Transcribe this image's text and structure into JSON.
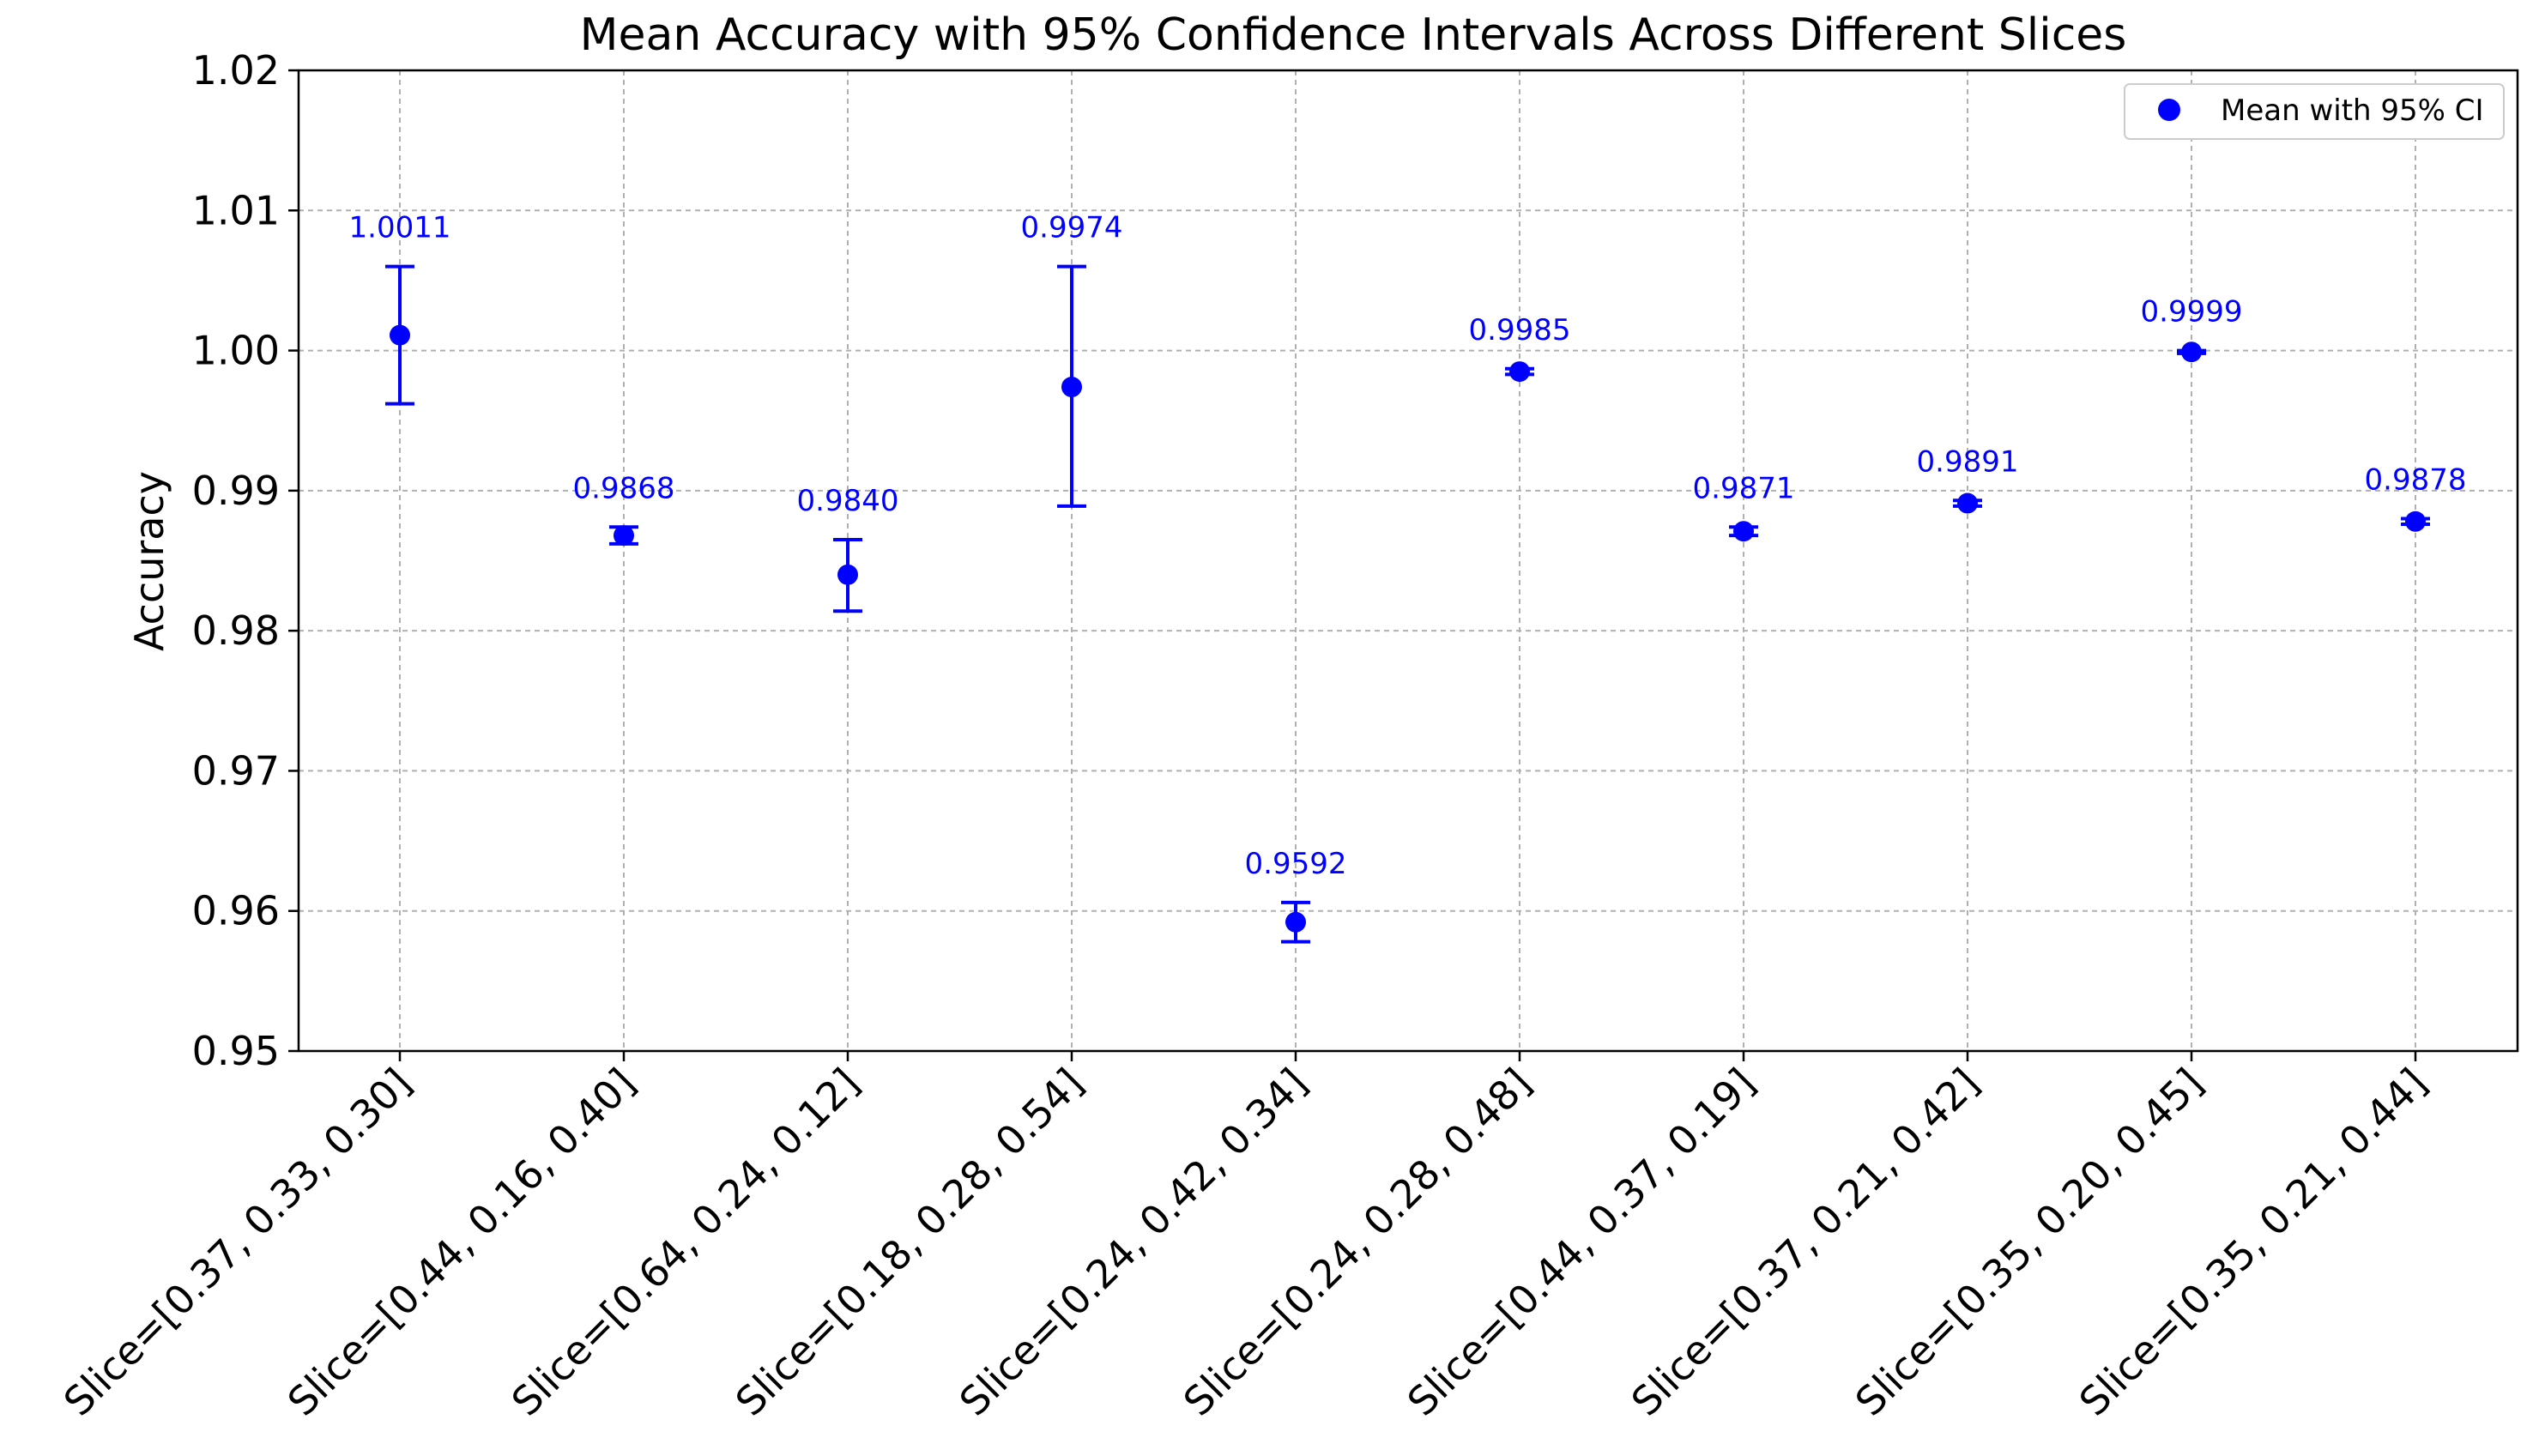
{
  "chart_data": {
    "type": "scatter",
    "title": "Mean Accuracy with 95% Confidence Intervals Across Different Slices",
    "xlabel": "",
    "ylabel": "Accuracy",
    "ylim": [
      0.95,
      1.02
    ],
    "yticks": [
      0.95,
      0.96,
      0.97,
      0.98,
      0.99,
      1.0,
      1.01,
      1.02
    ],
    "ytick_labels": [
      "0.95",
      "0.96",
      "0.97",
      "0.98",
      "0.99",
      "1.00",
      "1.01",
      "1.02"
    ],
    "grid": true,
    "color": "#0000ff",
    "legend": {
      "position": "top-right",
      "label": "Mean with 95% CI"
    },
    "categories": [
      "Slice=[0.37, 0.33, 0.30]",
      "Slice=[0.44, 0.16, 0.40]",
      "Slice=[0.64, 0.24, 0.12]",
      "Slice=[0.18, 0.28, 0.54]",
      "Slice=[0.24, 0.42, 0.34]",
      "Slice=[0.24, 0.28, 0.48]",
      "Slice=[0.44, 0.37, 0.19]",
      "Slice=[0.37, 0.21, 0.42]",
      "Slice=[0.35, 0.20, 0.45]",
      "Slice=[0.35, 0.21, 0.44]"
    ],
    "values": [
      1.0011,
      0.9868,
      0.984,
      0.9974,
      0.9592,
      0.9985,
      0.9871,
      0.9891,
      0.9999,
      0.9878
    ],
    "value_labels": [
      "1.0011",
      "0.9868",
      "0.9840",
      "0.9974",
      "0.9592",
      "0.9985",
      "0.9871",
      "0.9891",
      "0.9999",
      "0.9878"
    ],
    "ci_lower": [
      0.9962,
      0.9862,
      0.9814,
      0.9889,
      0.9578,
      0.9983,
      0.9868,
      0.9889,
      0.9998,
      0.9876
    ],
    "ci_upper": [
      1.006,
      0.9874,
      0.9865,
      1.006,
      0.9606,
      0.9987,
      0.9874,
      0.9893,
      1.0,
      0.988
    ]
  }
}
